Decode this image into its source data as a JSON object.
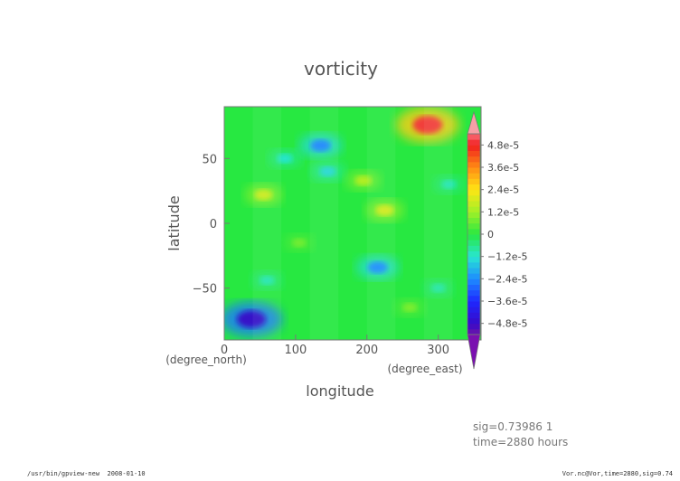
{
  "chart_data": {
    "type": "heatmap",
    "title": "vorticity",
    "xlabel": "longitude",
    "ylabel": "latitude",
    "x_unit": "(degree_east)",
    "y_unit": "(degree_north)",
    "xlim": [
      0,
      360
    ],
    "ylim": [
      -90,
      90
    ],
    "x_ticks": [
      0,
      100,
      200,
      300
    ],
    "x_tick_labels": [
      "0",
      "100",
      "200",
      "300"
    ],
    "y_ticks": [
      50,
      0,
      -50
    ],
    "y_tick_labels": [
      "50",
      "0",
      "−50"
    ],
    "colorbar": {
      "labels": [
        "4.8e-5",
        "3.6e-5",
        "2.4e-5",
        "1.2e-5",
        "0",
        "−1.2e-5",
        "−2.4e-5",
        "−3.6e-5",
        "−4.8e-5"
      ],
      "values": [
        4.8e-05,
        3.6e-05,
        2.4e-05,
        1.2e-05,
        0,
        -1.2e-05,
        -2.4e-05,
        -3.6e-05,
        -4.8e-05
      ],
      "range": [
        -5.4e-05,
        5.4e-05
      ],
      "over_color": "#f7a0a6",
      "under_color": "#7a10b0"
    },
    "features": [
      {
        "lon": 285,
        "lat": 76,
        "value": 5e-05
      },
      {
        "lon": 38,
        "lat": -74,
        "value": -4.8e-05
      },
      {
        "lon": 55,
        "lat": 22,
        "value": 1.8e-05
      },
      {
        "lon": 225,
        "lat": 10,
        "value": 1.9e-05
      },
      {
        "lon": 85,
        "lat": 50,
        "value": -1.2e-05
      },
      {
        "lon": 135,
        "lat": 60,
        "value": -2.5e-05
      },
      {
        "lon": 145,
        "lat": 40,
        "value": -1.4e-05
      },
      {
        "lon": 215,
        "lat": -34,
        "value": -2.4e-05
      },
      {
        "lon": 60,
        "lat": -44,
        "value": -1e-05
      },
      {
        "lon": 195,
        "lat": 33,
        "value": 1.5e-05
      },
      {
        "lon": 315,
        "lat": 30,
        "value": -1e-05
      },
      {
        "lon": 300,
        "lat": -50,
        "value": -9e-06
      },
      {
        "lon": 105,
        "lat": -15,
        "value": 8e-06
      },
      {
        "lon": 260,
        "lat": -65,
        "value": 9e-06
      }
    ]
  },
  "annotations": {
    "sig": "sig=0.73986 1",
    "time": "time=2880 hours"
  },
  "footer": {
    "left": "/usr/bin/gpview-new  2008-01-10",
    "right": "Vor.nc@Vor,time=2880,sig=0.74"
  }
}
